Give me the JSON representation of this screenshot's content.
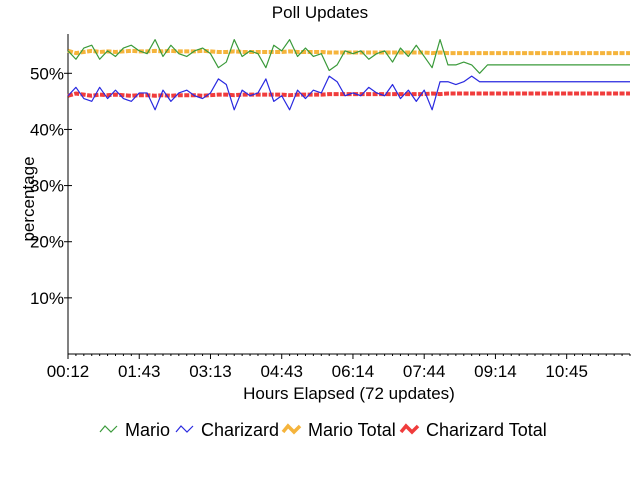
{
  "chart_data": {
    "type": "line",
    "title": "Poll Updates",
    "xlabel": "Hours Elapsed (72 updates)",
    "ylabel": "percentage",
    "ylim": [
      0,
      57
    ],
    "y_ticks": [
      10,
      20,
      30,
      40,
      50
    ],
    "y_tick_labels": [
      "10%",
      "20%",
      "30%",
      "40%",
      "50%"
    ],
    "x_tick_labels": [
      "00:12",
      "01:43",
      "03:13",
      "04:43",
      "06:14",
      "07:44",
      "09:14",
      "10:45"
    ],
    "x_count": 72,
    "x_tick_every": 9,
    "grid": false,
    "legend_placement": "bottom",
    "series": [
      {
        "name": "Mario",
        "color": "#3a9a3a",
        "style": "thin",
        "values": [
          54.0,
          52.5,
          54.5,
          55.0,
          52.5,
          54.0,
          53.0,
          54.5,
          55.0,
          54.0,
          53.5,
          56.0,
          53.0,
          55.0,
          53.5,
          53.0,
          54.0,
          54.5,
          53.5,
          51.0,
          52.0,
          56.0,
          53.0,
          54.0,
          53.5,
          51.0,
          55.0,
          54.0,
          56.0,
          53.0,
          54.5,
          53.0,
          53.5,
          50.5,
          51.5,
          54.0,
          53.5,
          54.0,
          52.5,
          53.5,
          54.0,
          52.0,
          54.5,
          53.0,
          55.0,
          53.0,
          51.0,
          56.0,
          51.5,
          51.5,
          52.0,
          51.5,
          50.0,
          51.5,
          51.5,
          51.5,
          51.5,
          51.5,
          51.5,
          51.5,
          51.5,
          51.5,
          51.5,
          51.5,
          51.5,
          51.5,
          51.5,
          51.5,
          51.5,
          51.5,
          51.5,
          51.5
        ]
      },
      {
        "name": "Charizard",
        "color": "#2a2ae0",
        "style": "thin",
        "values": [
          46.0,
          47.5,
          45.5,
          45.0,
          47.5,
          45.5,
          47.0,
          45.5,
          45.0,
          46.5,
          46.5,
          43.5,
          47.0,
          45.0,
          46.5,
          47.0,
          46.0,
          45.5,
          46.5,
          49.0,
          48.0,
          43.5,
          47.0,
          46.0,
          46.5,
          49.0,
          45.0,
          46.0,
          43.5,
          47.0,
          45.5,
          47.0,
          46.5,
          49.5,
          48.5,
          46.0,
          46.5,
          46.0,
          47.5,
          46.5,
          46.0,
          48.0,
          45.5,
          47.0,
          45.0,
          47.0,
          43.5,
          48.5,
          48.5,
          48.0,
          48.5,
          49.5,
          48.5,
          48.5,
          48.5,
          48.5,
          48.5,
          48.5,
          48.5,
          48.5,
          48.5,
          48.5,
          48.5,
          48.5,
          48.5,
          48.5,
          48.5,
          48.5,
          48.5,
          48.5,
          48.5,
          48.5
        ]
      },
      {
        "name": "Mario Total",
        "color": "#f5b43c",
        "style": "thick",
        "values": [
          54.0,
          53.6,
          53.8,
          54.0,
          53.8,
          53.9,
          53.8,
          53.9,
          54.0,
          53.9,
          53.9,
          54.0,
          53.9,
          54.0,
          53.9,
          53.9,
          53.9,
          54.0,
          53.9,
          53.8,
          53.8,
          53.9,
          53.8,
          53.8,
          53.8,
          53.8,
          53.8,
          53.8,
          53.9,
          53.8,
          53.8,
          53.8,
          53.8,
          53.7,
          53.7,
          53.7,
          53.7,
          53.7,
          53.7,
          53.7,
          53.7,
          53.7,
          53.7,
          53.7,
          53.7,
          53.7,
          53.6,
          53.7,
          53.6,
          53.6,
          53.6,
          53.6,
          53.6,
          53.6,
          53.6,
          53.6,
          53.6,
          53.6,
          53.6,
          53.6,
          53.6,
          53.6,
          53.6,
          53.6,
          53.6,
          53.6,
          53.6,
          53.6,
          53.6,
          53.6,
          53.6,
          53.6
        ]
      },
      {
        "name": "Charizard Total",
        "color": "#f03c3c",
        "style": "thick",
        "values": [
          46.0,
          46.4,
          46.2,
          46.0,
          46.2,
          46.1,
          46.2,
          46.1,
          46.0,
          46.1,
          46.1,
          46.0,
          46.1,
          46.0,
          46.1,
          46.1,
          46.1,
          46.0,
          46.1,
          46.2,
          46.2,
          46.1,
          46.2,
          46.2,
          46.2,
          46.2,
          46.2,
          46.2,
          46.1,
          46.2,
          46.2,
          46.2,
          46.2,
          46.3,
          46.3,
          46.3,
          46.3,
          46.3,
          46.3,
          46.3,
          46.3,
          46.3,
          46.3,
          46.3,
          46.3,
          46.3,
          46.4,
          46.3,
          46.4,
          46.4,
          46.4,
          46.4,
          46.4,
          46.4,
          46.4,
          46.4,
          46.4,
          46.4,
          46.4,
          46.4,
          46.4,
          46.4,
          46.4,
          46.4,
          46.4,
          46.4,
          46.4,
          46.4,
          46.4,
          46.4,
          46.4,
          46.4
        ]
      }
    ]
  }
}
